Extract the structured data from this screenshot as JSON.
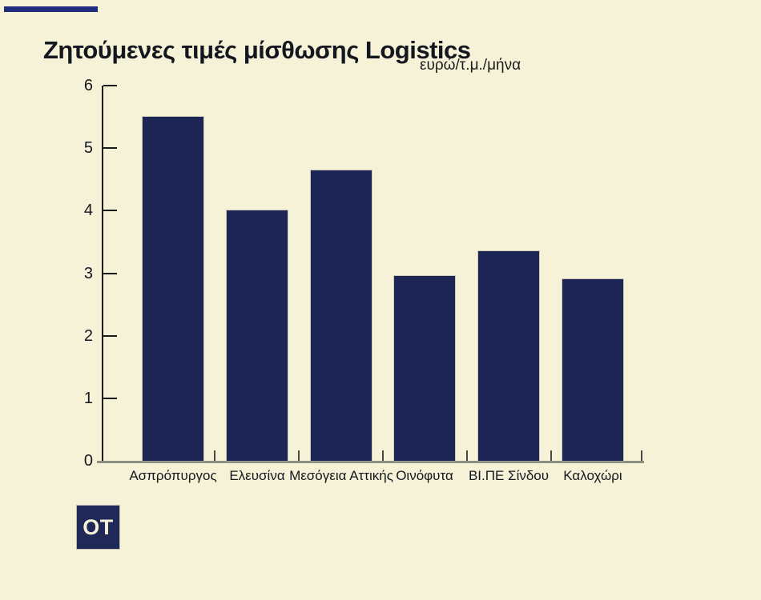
{
  "page": {
    "background_color": "#f5f2d7",
    "accent_color": "#1f2b7e"
  },
  "header": {
    "title": "Ζητούμενες τιμές μίσθωσης Logistics",
    "unit_label": "ευρώ/τ.μ./μήνα"
  },
  "logo": {
    "text": "OT",
    "box_color": "#1f2857"
  },
  "chart_data": {
    "type": "bar",
    "title": "Ζητούμενες τιμές μίσθωσης Logistics",
    "unit": "ευρώ/τ.μ./μήνα",
    "categories": [
      "Ασπρόπυργος",
      "Ελευσίνα",
      "Μεσόγεια Αττικής",
      "Οινόφυτα",
      "ΒΙ.ΠΕ Σίνδου",
      "Καλοχώρι"
    ],
    "values": [
      5.5,
      4.0,
      4.65,
      2.95,
      3.35,
      2.9
    ],
    "xlabel": "",
    "ylabel": "",
    "ylim": [
      0,
      6
    ],
    "yticks": [
      0,
      1,
      2,
      3,
      4,
      5,
      6
    ],
    "bar_color": "#1c2553",
    "grid": false,
    "legend": false
  }
}
